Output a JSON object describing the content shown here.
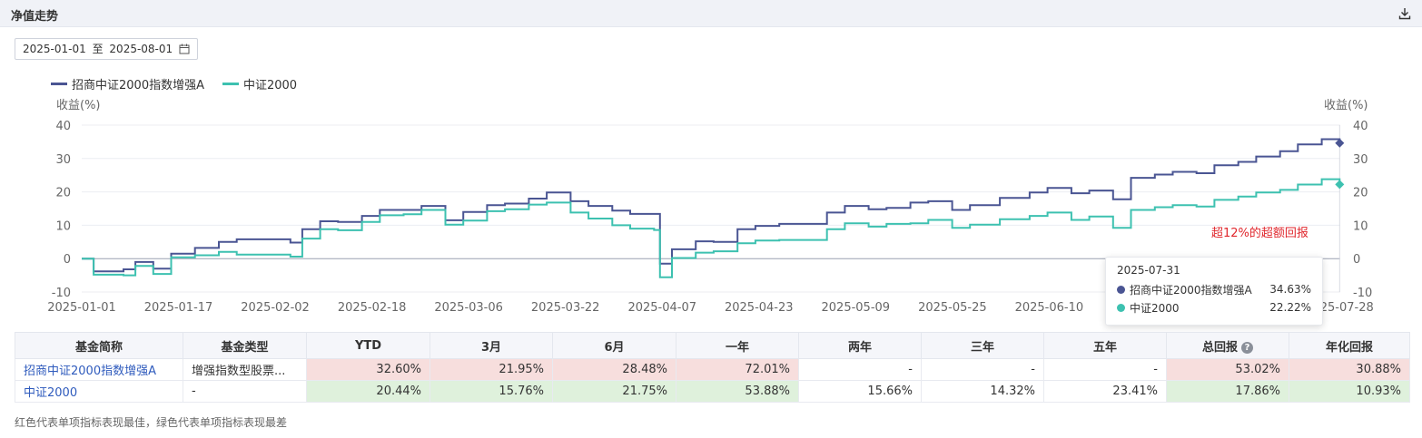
{
  "header": {
    "title": "净值走势"
  },
  "date_range": {
    "start": "2025-01-01",
    "sep": "至",
    "end": "2025-08-01"
  },
  "annotation": "超12%的超额回报",
  "tooltip": {
    "date": "2025-07-31",
    "rows": [
      {
        "name": "招商中证2000指数增强A",
        "value": "34.63%"
      },
      {
        "name": "中证2000",
        "value": "22.22%"
      }
    ]
  },
  "colors": {
    "fund": "#4a5593",
    "index": "#3dc1b0",
    "annotation": "#e0262c",
    "best": "#f7dedd",
    "worst": "#dff1dc"
  },
  "chart_data": {
    "type": "line",
    "ylabel": "收益(%)",
    "ylabel_right": "收益(%)",
    "ylim": [
      -10,
      40
    ],
    "yticks": [
      40,
      30,
      20,
      10,
      0,
      -10
    ],
    "legend_position": "top-left",
    "grid": true,
    "xticks": [
      "2025-01-01",
      "2025-01-17",
      "2025-02-02",
      "2025-02-18",
      "2025-03-06",
      "2025-03-22",
      "2025-04-07",
      "2025-04-23",
      "2025-05-09",
      "2025-05-25",
      "2025-06-10",
      "2025-06-26",
      "2025-07-12",
      "2025-07-28"
    ],
    "x": [
      "2025-01-01",
      "2025-01-03",
      "2025-01-08",
      "2025-01-10",
      "2025-01-13",
      "2025-01-16",
      "2025-01-20",
      "2025-01-24",
      "2025-01-27",
      "2025-02-05",
      "2025-02-07",
      "2025-02-10",
      "2025-02-13",
      "2025-02-17",
      "2025-02-20",
      "2025-02-24",
      "2025-02-27",
      "2025-03-03",
      "2025-03-06",
      "2025-03-10",
      "2025-03-13",
      "2025-03-17",
      "2025-03-20",
      "2025-03-24",
      "2025-03-27",
      "2025-03-31",
      "2025-04-03",
      "2025-04-07",
      "2025-04-08",
      "2025-04-10",
      "2025-04-14",
      "2025-04-17",
      "2025-04-21",
      "2025-04-24",
      "2025-04-28",
      "2025-05-06",
      "2025-05-09",
      "2025-05-13",
      "2025-05-16",
      "2025-05-20",
      "2025-05-23",
      "2025-05-27",
      "2025-05-30",
      "2025-06-04",
      "2025-06-09",
      "2025-06-12",
      "2025-06-16",
      "2025-06-19",
      "2025-06-23",
      "2025-06-26",
      "2025-06-30",
      "2025-07-03",
      "2025-07-07",
      "2025-07-10",
      "2025-07-14",
      "2025-07-17",
      "2025-07-21",
      "2025-07-24",
      "2025-07-28",
      "2025-07-31"
    ],
    "series": [
      {
        "name": "招商中证2000指数增强A",
        "color": "#4a5593",
        "values": [
          0,
          -3.8,
          -3.2,
          -1.0,
          -3.0,
          1.5,
          3.2,
          5.0,
          5.8,
          4.8,
          8.8,
          11.2,
          11.0,
          12.8,
          14.6,
          14.6,
          15.8,
          11.5,
          14.0,
          16.0,
          16.5,
          18.0,
          19.8,
          17.2,
          15.8,
          14.4,
          13.4,
          13.4,
          -1.5,
          2.8,
          5.2,
          5.0,
          8.8,
          9.8,
          10.4,
          13.8,
          15.8,
          14.8,
          15.2,
          16.8,
          17.2,
          14.6,
          16.0,
          18.2,
          19.8,
          21.2,
          19.6,
          20.4,
          17.8,
          24.2,
          25.2,
          26.0,
          25.6,
          28.0,
          29.0,
          30.6,
          32.2,
          34.2,
          35.8,
          34.63
        ]
      },
      {
        "name": "中证2000",
        "color": "#3dc1b0",
        "values": [
          0,
          -4.8,
          -5.0,
          -2.2,
          -4.6,
          0.4,
          1.0,
          2.0,
          1.2,
          0.6,
          6.0,
          8.8,
          8.5,
          11.0,
          13.0,
          13.3,
          14.6,
          10.2,
          11.4,
          14.2,
          14.8,
          16.2,
          16.8,
          13.8,
          12.0,
          10.0,
          9.0,
          8.6,
          -5.6,
          0.2,
          1.8,
          2.2,
          4.6,
          5.4,
          5.6,
          8.8,
          10.6,
          9.6,
          10.4,
          10.6,
          11.6,
          9.2,
          10.2,
          11.8,
          12.8,
          13.8,
          11.6,
          12.6,
          9.2,
          14.6,
          15.4,
          16.0,
          15.6,
          17.6,
          18.6,
          19.8,
          20.6,
          22.2,
          23.8,
          22.22
        ]
      }
    ]
  },
  "table": {
    "headers": [
      "基金简称",
      "基金类型",
      "YTD",
      "3月",
      "6月",
      "一年",
      "两年",
      "三年",
      "五年",
      "总回报",
      "年化回报"
    ],
    "rows": [
      {
        "name": "招商中证2000指数增强A",
        "type": "增强指数型股票...",
        "values": [
          "32.60%",
          "21.95%",
          "28.48%",
          "72.01%",
          "-",
          "-",
          "-",
          "53.02%",
          "30.88%"
        ]
      },
      {
        "name": "中证2000",
        "type": "-",
        "values": [
          "20.44%",
          "15.76%",
          "21.75%",
          "53.88%",
          "15.66%",
          "14.32%",
          "23.41%",
          "17.86%",
          "10.93%"
        ]
      }
    ]
  },
  "footnote": "红色代表单项指标表现最佳，绿色代表单项指标表现最差"
}
